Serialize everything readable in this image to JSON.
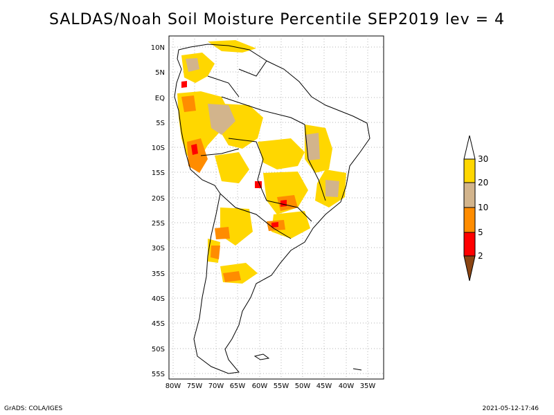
{
  "title": "SALDAS/Noah Soil Moisture Percentile SEP2019 lev = 4",
  "lat_labels": [
    "10N",
    "5N",
    "EQ",
    "5S",
    "10S",
    "15S",
    "20S",
    "25S",
    "30S",
    "35S",
    "40S",
    "45S",
    "50S",
    "55S"
  ],
  "lon_labels": [
    "80W",
    "75W",
    "70W",
    "65W",
    "60W",
    "55W",
    "50W",
    "45W",
    "40W",
    "35W"
  ],
  "legend": {
    "levels": [
      "2",
      "5",
      "10",
      "20",
      "30"
    ],
    "colors": {
      "below_2": "#8b4513",
      "2_5": "#ff0000",
      "5_10": "#ff8c00",
      "10_20": "#d2b48c",
      "20_30": "#ffd700",
      "above_30": "#ffffff"
    }
  },
  "footer": {
    "left": "GrADS: COLA/IGES",
    "right": "2021-05-12-17:46"
  }
}
